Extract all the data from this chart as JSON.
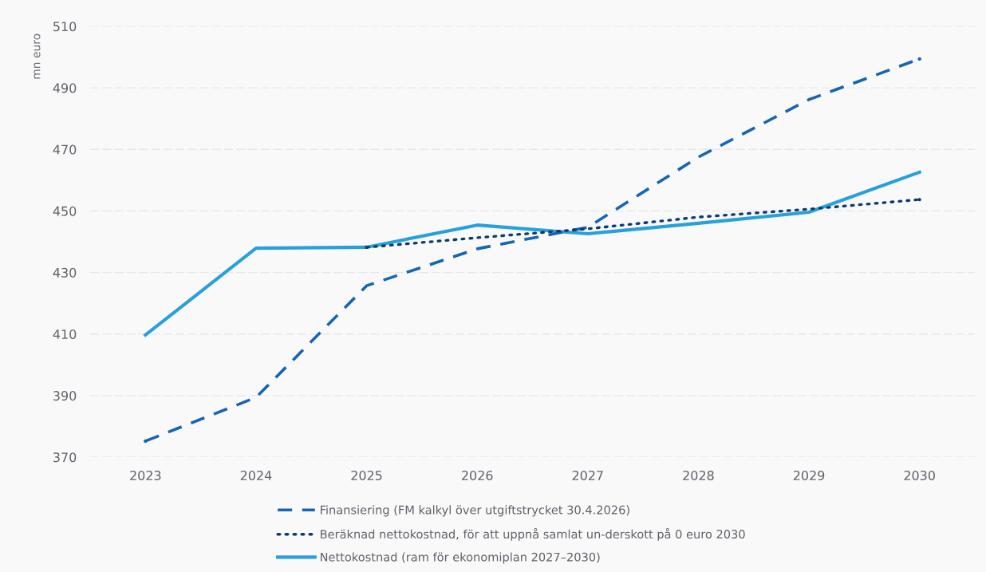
{
  "chart_data": {
    "type": "line",
    "ylabel": "mn euro",
    "categories": [
      "2023",
      "2024",
      "2025",
      "2026",
      "2027",
      "2028",
      "2029",
      "2030"
    ],
    "series": [
      {
        "name": "Finansiering (FM kalkyl över utgiftstrycket 30.4.2026)",
        "color": "#1565b5",
        "line_style": "dashed",
        "values": [
          375.2,
          389.4,
          425.7,
          437.7,
          444.7,
          467.5,
          486.2,
          499.4
        ]
      },
      {
        "name": "Beräknad nettokostnad, för att uppnå samlat un-derskott på 0 euro 2030",
        "color": "#0d3a73",
        "line_style": "dotted",
        "values": [
          null,
          null,
          438.2,
          441.3,
          444.2,
          448.0,
          450.6,
          453.7
        ]
      },
      {
        "name": "Nettokostnad (ram för ekonomiplan 2027–2030)",
        "color": "#27a0dc",
        "line_style": "solid",
        "values": [
          409.7,
          437.9,
          438.2,
          445.4,
          442.6,
          446.0,
          449.6,
          462.6
        ]
      }
    ],
    "ylim": [
      370,
      510
    ],
    "yticks": [
      370,
      390,
      410,
      430,
      450,
      470,
      490,
      510
    ],
    "grid": "y",
    "legend": "bottom",
    "marker": "none"
  }
}
